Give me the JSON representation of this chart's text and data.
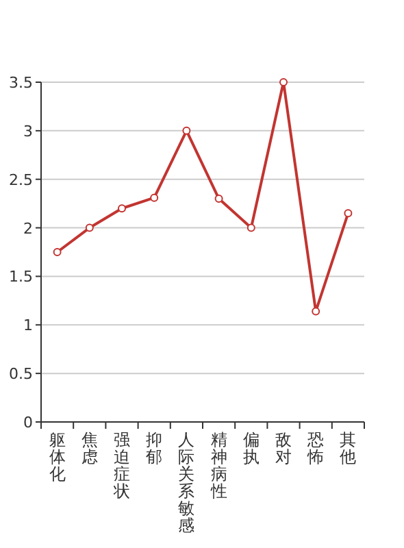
{
  "chart_data": {
    "type": "line",
    "categories": [
      "躯体化",
      "焦虑",
      "强迫症状",
      "抑郁",
      "人际关系敏感",
      "精神病性",
      "偏执",
      "敌对",
      "恐怖",
      "其他"
    ],
    "series": [
      {
        "color": "#c23531",
        "values": [
          1.75,
          2.0,
          2.2,
          2.31,
          3.0,
          2.3,
          2.0,
          3.5,
          1.14,
          2.15
        ]
      }
    ],
    "ylim": [
      0,
      3.5
    ],
    "yticks": [
      0,
      0.5,
      1,
      1.5,
      2,
      2.5,
      3,
      3.5
    ],
    "grid": "y",
    "marker": "circle",
    "line_style": "solid"
  }
}
